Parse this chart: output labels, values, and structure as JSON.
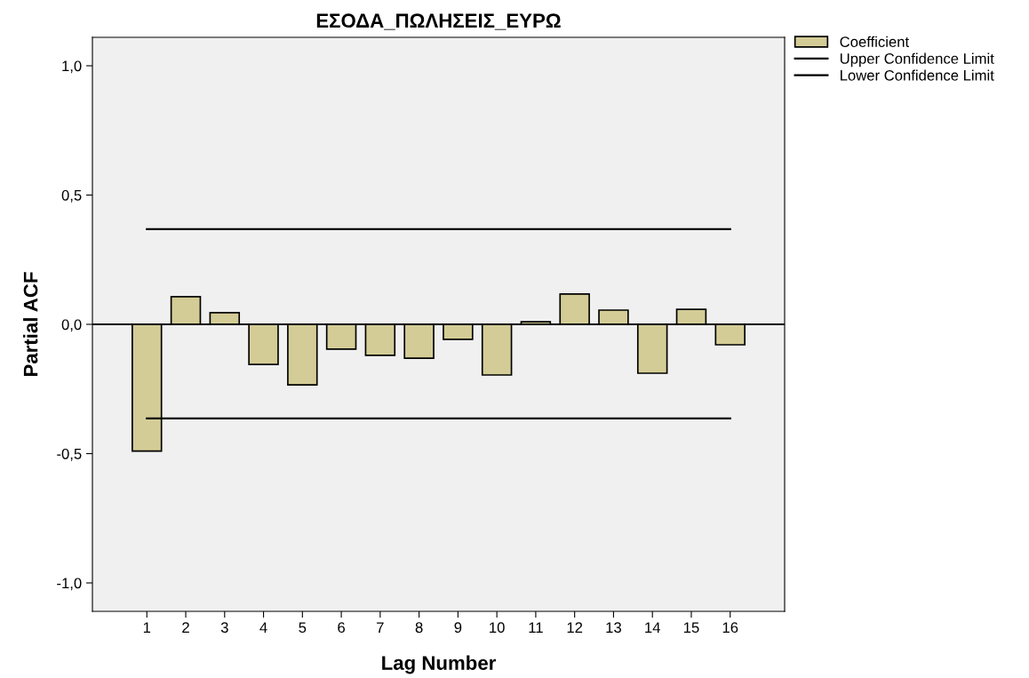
{
  "chart_data": {
    "type": "bar",
    "title": "ΕΣΟΔΑ_ΠΩΛΗΣΕΙΣ_ΕΥΡΩ",
    "xlabel": "Lag Number",
    "ylabel": "Partial ACF",
    "categories": [
      "1",
      "2",
      "3",
      "4",
      "5",
      "6",
      "7",
      "8",
      "9",
      "10",
      "11",
      "12",
      "13",
      "14",
      "15",
      "16"
    ],
    "series": [
      {
        "name": "Coefficient",
        "color": "#d3cc96",
        "values": [
          -0.49,
          0.107,
          0.045,
          -0.155,
          -0.234,
          -0.096,
          -0.12,
          -0.131,
          -0.058,
          -0.196,
          0.01,
          0.117,
          0.055,
          -0.189,
          0.058,
          -0.079
        ]
      },
      {
        "name": "Upper Confidence Limit",
        "type": "line",
        "color": "#000000",
        "values": [
          0.368,
          0.368,
          0.368,
          0.368,
          0.368,
          0.368,
          0.368,
          0.368,
          0.368,
          0.368,
          0.368,
          0.368,
          0.368,
          0.368,
          0.368,
          0.368
        ]
      },
      {
        "name": "Lower Confidence Limit",
        "type": "line",
        "color": "#000000",
        "values": [
          -0.364,
          -0.364,
          -0.364,
          -0.364,
          -0.364,
          -0.364,
          -0.364,
          -0.364,
          -0.364,
          -0.364,
          -0.364,
          -0.364,
          -0.364,
          -0.364,
          -0.364,
          -0.364
        ]
      }
    ],
    "ylim": [
      -1.11,
      1.11
    ],
    "yticks": [
      {
        "value": -1.0,
        "label": "-1,0"
      },
      {
        "value": -0.5,
        "label": "-0,5"
      },
      {
        "value": 0.0,
        "label": "0,0"
      },
      {
        "value": 0.5,
        "label": "0,5"
      },
      {
        "value": 1.0,
        "label": "1,0"
      }
    ],
    "ref_lines": [
      {
        "axis": "y",
        "value": 0.0,
        "color": "#000000"
      }
    ],
    "grid": false,
    "legend": "top right"
  }
}
